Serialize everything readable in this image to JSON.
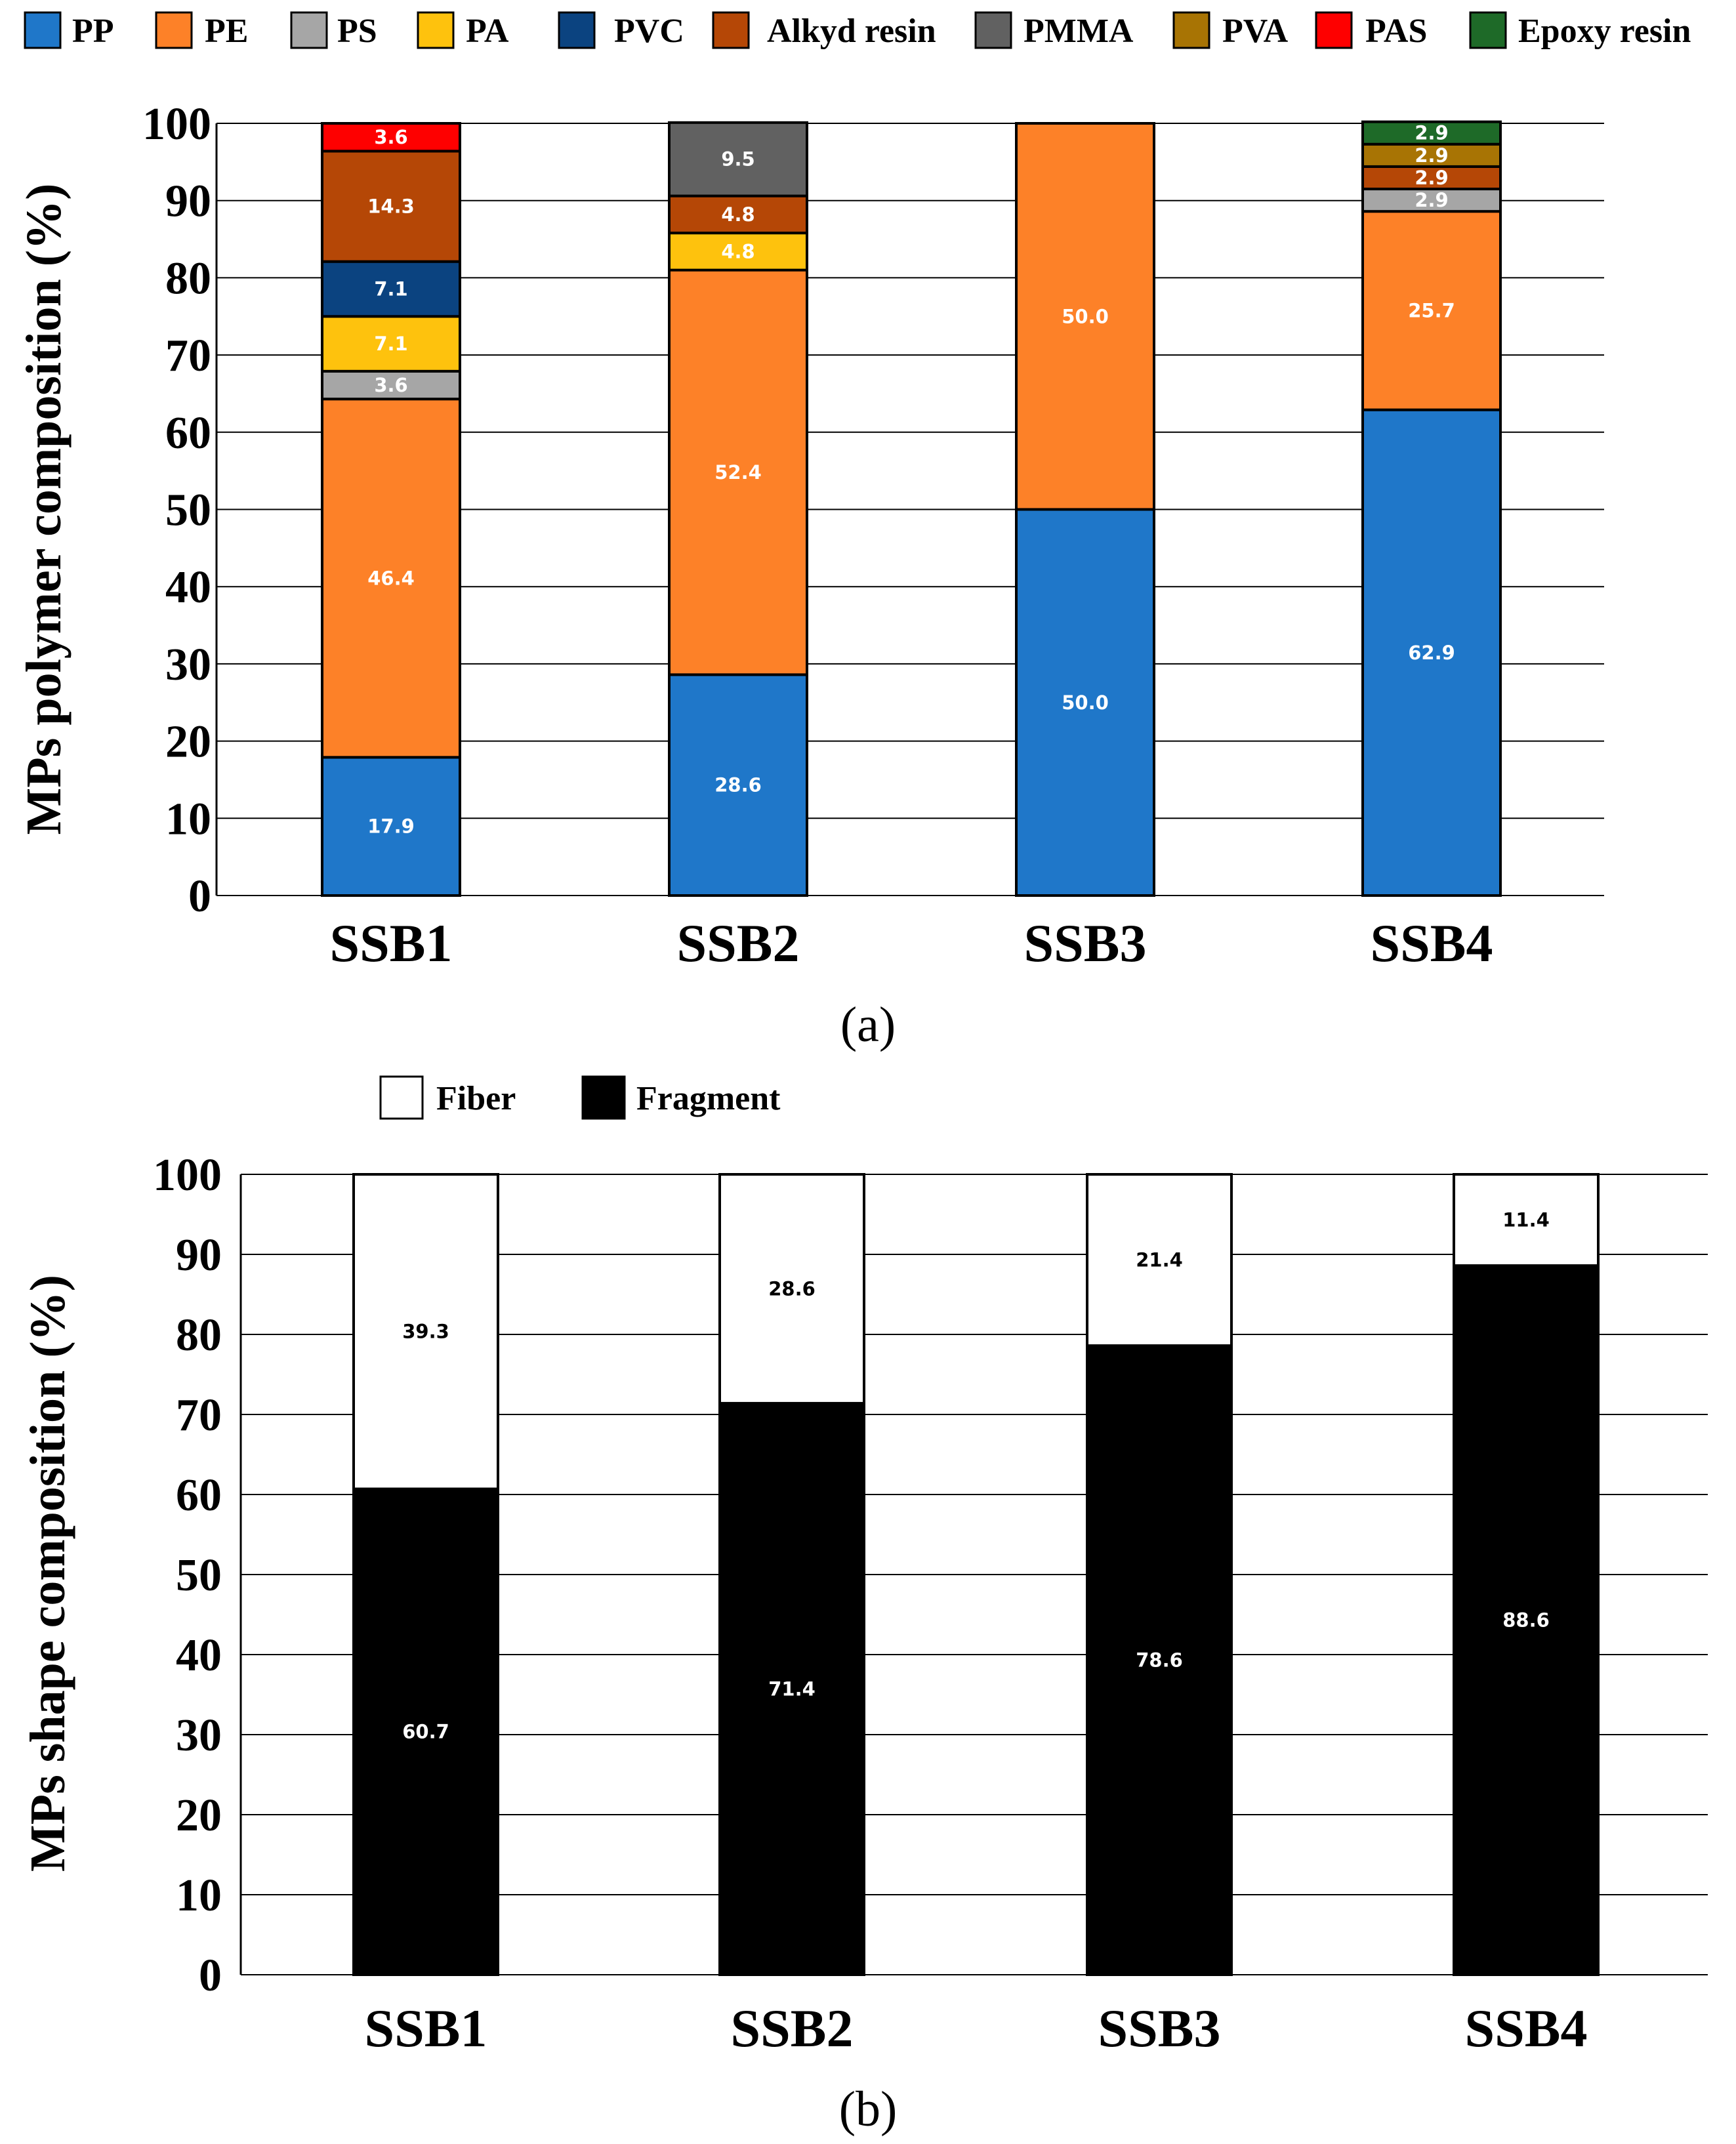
{
  "chart_data": [
    {
      "type": "bar",
      "stacked": true,
      "title": "",
      "panel_label": "(a)",
      "xlabel": "",
      "ylabel": "MPs polymer composition (%)",
      "ylim": [
        0,
        100
      ],
      "yticks": [
        "0",
        "10",
        "20",
        "30",
        "40",
        "50",
        "60",
        "70",
        "80",
        "90",
        "100"
      ],
      "grid": true,
      "legend_position": "top",
      "categories": [
        "SSB1",
        "SSB2",
        "SSB3",
        "SSB4"
      ],
      "series": [
        {
          "name": "PP",
          "color": "#1f77c9",
          "label_color": "#ffffff",
          "values": [
            17.9,
            28.6,
            50.0,
            62.9
          ],
          "labels": [
            "17.9",
            "28.6",
            "50.0",
            "62.9"
          ]
        },
        {
          "name": "PE",
          "color": "#fd8128",
          "label_color": "#ffffff",
          "values": [
            46.4,
            52.4,
            50.0,
            25.7
          ],
          "labels": [
            "46.4",
            "52.4",
            "50.0",
            "25.7"
          ]
        },
        {
          "name": "PS",
          "color": "#a6a6a6",
          "label_color": "#ffffff",
          "values": [
            3.6,
            0,
            0,
            2.9
          ],
          "labels": [
            "3.6",
            "",
            "",
            "2.9"
          ]
        },
        {
          "name": "PA",
          "color": "#fec20d",
          "label_color": "#ffffff",
          "values": [
            7.1,
            4.8,
            0,
            0
          ],
          "labels": [
            "7.1",
            "4.8",
            "",
            ""
          ]
        },
        {
          "name": "PVC",
          "color": "#0b4380",
          "label_color": "#ffffff",
          "values": [
            7.1,
            0,
            0,
            0
          ],
          "labels": [
            "7.1",
            "",
            "",
            ""
          ]
        },
        {
          "name": "Alkyd resin",
          "color": "#b54706",
          "label_color": "#ffffff",
          "values": [
            14.3,
            4.8,
            0,
            2.9
          ],
          "labels": [
            "14.3",
            "4.8",
            "",
            "2.9"
          ]
        },
        {
          "name": "PMMA",
          "color": "#616161",
          "label_color": "#ffffff",
          "values": [
            0,
            9.5,
            0,
            0
          ],
          "labels": [
            "",
            "9.5",
            "",
            ""
          ]
        },
        {
          "name": "PVA",
          "color": "#a87404",
          "label_color": "#ffffff",
          "values": [
            0,
            0,
            0,
            2.9
          ],
          "labels": [
            "",
            "",
            "",
            "2.9"
          ]
        },
        {
          "name": "PAS",
          "color": "#fe0000",
          "label_color": "#ffffff",
          "values": [
            3.6,
            0,
            0,
            0
          ],
          "labels": [
            "3.6",
            "",
            "",
            ""
          ]
        },
        {
          "name": "Epoxy resin",
          "color": "#1e6a28",
          "label_color": "#ffffff",
          "values": [
            0,
            0,
            0,
            2.9
          ],
          "labels": [
            "",
            "",
            "",
            "2.9"
          ]
        }
      ]
    },
    {
      "type": "bar",
      "stacked": true,
      "title": "",
      "panel_label": "(b)",
      "xlabel": "",
      "ylabel": "MPs shape composition (%)",
      "ylim": [
        0,
        100
      ],
      "yticks": [
        "0",
        "10",
        "20",
        "30",
        "40",
        "50",
        "60",
        "70",
        "80",
        "90",
        "100"
      ],
      "grid": true,
      "legend_position": "top",
      "categories": [
        "SSB1",
        "SSB2",
        "SSB3",
        "SSB4"
      ],
      "series": [
        {
          "name": "Fragment",
          "color": "#000000",
          "label_color": "#ffffff",
          "values": [
            60.7,
            71.4,
            78.6,
            88.6
          ],
          "labels": [
            "60.7",
            "71.4",
            "78.6",
            "88.6"
          ]
        },
        {
          "name": "Fiber",
          "color": "#ffffff",
          "label_color": "#000000",
          "values": [
            39.3,
            28.6,
            21.4,
            11.4
          ],
          "labels": [
            "39.3",
            "28.6",
            "21.4",
            "11.4"
          ]
        }
      ],
      "legend_order": [
        "Fiber",
        "Fragment"
      ]
    }
  ]
}
